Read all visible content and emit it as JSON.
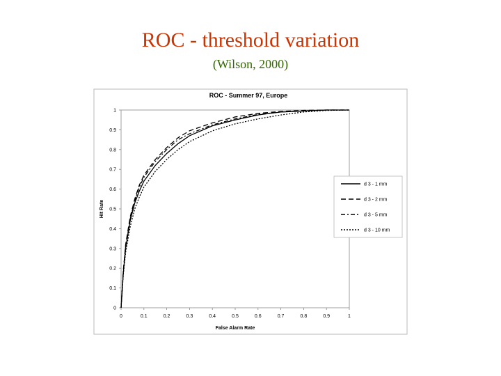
{
  "slide": {
    "title": "ROC - threshold variation",
    "subtitle": "(Wilson, 2000)"
  },
  "chart_data": {
    "type": "line",
    "title": "ROC - Summer 97, Europe",
    "xlabel": "False Alarm Rate",
    "ylabel": "Hit Rate",
    "xlim": [
      0,
      1
    ],
    "ylim": [
      0,
      1
    ],
    "x_ticks": [
      "0",
      "0.1",
      "0.2",
      "0.3",
      "0.4",
      "0.5",
      "0.6",
      "0.7",
      "0.8",
      "0.9",
      "1"
    ],
    "y_ticks": [
      "0",
      "0.1",
      "0.2",
      "0.3",
      "0.4",
      "0.5",
      "0.6",
      "0.7",
      "0.8",
      "0.9",
      "1"
    ],
    "grid": false,
    "legend": "right",
    "series": [
      {
        "name": "d 3 - 1 mm",
        "style": "solid",
        "points": [
          [
            0,
            0
          ],
          [
            0.01,
            0.18
          ],
          [
            0.02,
            0.3
          ],
          [
            0.04,
            0.44
          ],
          [
            0.06,
            0.53
          ],
          [
            0.08,
            0.59
          ],
          [
            0.1,
            0.64
          ],
          [
            0.15,
            0.72
          ],
          [
            0.2,
            0.78
          ],
          [
            0.25,
            0.83
          ],
          [
            0.3,
            0.87
          ],
          [
            0.4,
            0.92
          ],
          [
            0.5,
            0.95
          ],
          [
            0.6,
            0.975
          ],
          [
            0.7,
            0.99
          ],
          [
            0.8,
            0.995
          ],
          [
            0.9,
            1.0
          ],
          [
            1.0,
            1.0
          ]
        ]
      },
      {
        "name": "d 3 - 2 mm",
        "style": "long-dash",
        "points": [
          [
            0,
            0
          ],
          [
            0.01,
            0.19
          ],
          [
            0.02,
            0.32
          ],
          [
            0.04,
            0.46
          ],
          [
            0.06,
            0.55
          ],
          [
            0.08,
            0.62
          ],
          [
            0.1,
            0.67
          ],
          [
            0.15,
            0.75
          ],
          [
            0.2,
            0.81
          ],
          [
            0.25,
            0.86
          ],
          [
            0.3,
            0.895
          ],
          [
            0.4,
            0.935
          ],
          [
            0.5,
            0.965
          ],
          [
            0.6,
            0.983
          ],
          [
            0.7,
            0.993
          ],
          [
            0.8,
            0.998
          ],
          [
            0.9,
            1.0
          ],
          [
            1.0,
            1.0
          ]
        ]
      },
      {
        "name": "d 3 - 5 mm",
        "style": "dash-dot",
        "points": [
          [
            0,
            0
          ],
          [
            0.01,
            0.19
          ],
          [
            0.02,
            0.31
          ],
          [
            0.04,
            0.45
          ],
          [
            0.06,
            0.54
          ],
          [
            0.08,
            0.61
          ],
          [
            0.1,
            0.66
          ],
          [
            0.15,
            0.74
          ],
          [
            0.2,
            0.8
          ],
          [
            0.25,
            0.85
          ],
          [
            0.3,
            0.88
          ],
          [
            0.4,
            0.925
          ],
          [
            0.5,
            0.955
          ],
          [
            0.6,
            0.978
          ],
          [
            0.7,
            0.99
          ],
          [
            0.8,
            0.996
          ],
          [
            0.9,
            1.0
          ],
          [
            1.0,
            1.0
          ]
        ]
      },
      {
        "name": "d 3 - 10 mm",
        "style": "dotted",
        "points": [
          [
            0,
            0
          ],
          [
            0.01,
            0.17
          ],
          [
            0.02,
            0.28
          ],
          [
            0.04,
            0.41
          ],
          [
            0.06,
            0.5
          ],
          [
            0.08,
            0.56
          ],
          [
            0.1,
            0.61
          ],
          [
            0.15,
            0.69
          ],
          [
            0.2,
            0.75
          ],
          [
            0.25,
            0.8
          ],
          [
            0.3,
            0.84
          ],
          [
            0.4,
            0.895
          ],
          [
            0.5,
            0.93
          ],
          [
            0.6,
            0.955
          ],
          [
            0.7,
            0.975
          ],
          [
            0.8,
            0.99
          ],
          [
            0.9,
            0.998
          ],
          [
            1.0,
            1.0
          ]
        ]
      }
    ]
  }
}
